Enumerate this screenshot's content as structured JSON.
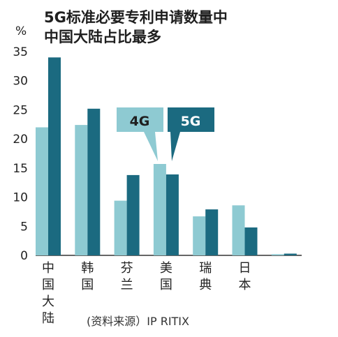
{
  "chart_data": {
    "type": "bar",
    "title_line1": "5G标准必要专利申请数量中",
    "title_line2": "中国大陆占比最多",
    "ylabel": "%",
    "ylim": [
      0,
      35
    ],
    "yticks": [
      "0",
      "5",
      "10",
      "15",
      "20",
      "25",
      "30",
      "35"
    ],
    "grid": false,
    "legend_position": "top-center (callout boxes)",
    "categories": [
      "中国大陆",
      "韩国",
      "芬兰",
      "美国",
      "瑞典",
      "日本",
      ""
    ],
    "series": [
      {
        "name": "4G",
        "color": "#8ecad2",
        "values": [
          22.0,
          22.4,
          9.4,
          15.7,
          6.7,
          8.6,
          0.2
        ]
      },
      {
        "name": "5G",
        "color": "#1b6a80",
        "values": [
          34.0,
          25.2,
          13.8,
          13.9,
          7.9,
          4.8,
          0.3
        ]
      }
    ],
    "source": "(资料来源）IP RITIX"
  }
}
